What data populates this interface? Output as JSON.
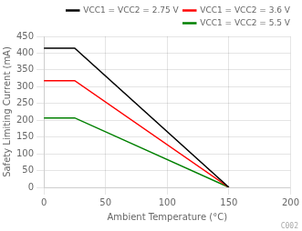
{
  "chart_data": {
    "type": "line",
    "xlabel": "Ambient Temperature (°C)",
    "ylabel": "Safety Limiting Current (mA)",
    "xlim": [
      0,
      200
    ],
    "ylim": [
      0,
      450
    ],
    "xticks": [
      0,
      50,
      100,
      150,
      200
    ],
    "yticks": [
      0,
      50,
      100,
      150,
      200,
      250,
      300,
      350,
      400,
      450
    ],
    "series": [
      {
        "name": "VCC1 = VCC2 = 2.75 V",
        "color": "#000000",
        "x": [
          0,
          25,
          150
        ],
        "values": [
          415,
          415,
          0
        ]
      },
      {
        "name": "VCC1 = VCC2 = 3.6 V",
        "color": "#ff0000",
        "x": [
          0,
          25,
          150
        ],
        "values": [
          318,
          318,
          0
        ]
      },
      {
        "name": "VCC1 = VCC2 = 5.5 V",
        "color": "#008000",
        "x": [
          0,
          25,
          150
        ],
        "values": [
          207,
          207,
          0
        ]
      }
    ],
    "legend": "upper right",
    "grid": true,
    "annotations": [
      "C002"
    ]
  }
}
